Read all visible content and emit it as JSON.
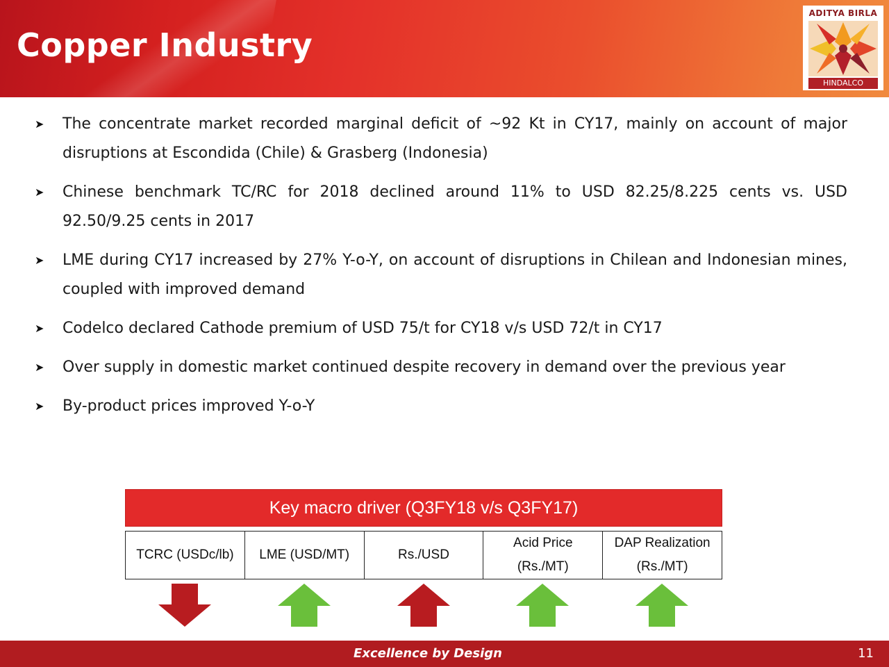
{
  "header": {
    "title": "Copper Industry",
    "logo": {
      "brand": "ADITYA BIRLA",
      "sub": "HINDALCO",
      "icon": "aditya-birla-sun-logo"
    }
  },
  "bullets": [
    "The concentrate market recorded marginal deficit of ~92 Kt in CY17, mainly on account of major disruptions at Escondida (Chile) & Grasberg (Indonesia)",
    "Chinese benchmark TC/RC for 2018 declined around 11% to USD 82.25/8.225 cents vs. USD 92.50/9.25 cents in 2017",
    "LME during CY17 increased by 27%  Y-o-Y, on account of disruptions in Chilean and Indonesian mines, coupled with improved demand",
    "Codelco declared Cathode premium of USD 75/t for CY18 v/s  USD 72/t in CY17",
    "Over supply in domestic market continued despite recovery in demand over the previous year",
    "By-product prices improved Y-o-Y"
  ],
  "macro_table": {
    "title": "Key macro driver (Q3FY18 v/s Q3FY17)",
    "columns": [
      {
        "label_line1": "TCRC (USDc/lb)",
        "label_line2": "",
        "direction": "down",
        "color": "#b81c20"
      },
      {
        "label_line1": "LME (USD/MT)",
        "label_line2": "",
        "direction": "up",
        "color": "#6abf3b"
      },
      {
        "label_line1": "Rs./USD",
        "label_line2": "",
        "direction": "up",
        "color": "#b81c20"
      },
      {
        "label_line1": "Acid Price",
        "label_line2": "(Rs./MT)",
        "direction": "up",
        "color": "#6abf3b"
      },
      {
        "label_line1": "DAP Realization",
        "label_line2": "(Rs./MT)",
        "direction": "up",
        "color": "#6abf3b"
      }
    ]
  },
  "footer": {
    "tagline": "Excellence by Design",
    "page_number": "11"
  },
  "colors": {
    "header_red": "#d4201f",
    "table_header_red": "#e32a2a",
    "footer_red": "#b11c20"
  }
}
